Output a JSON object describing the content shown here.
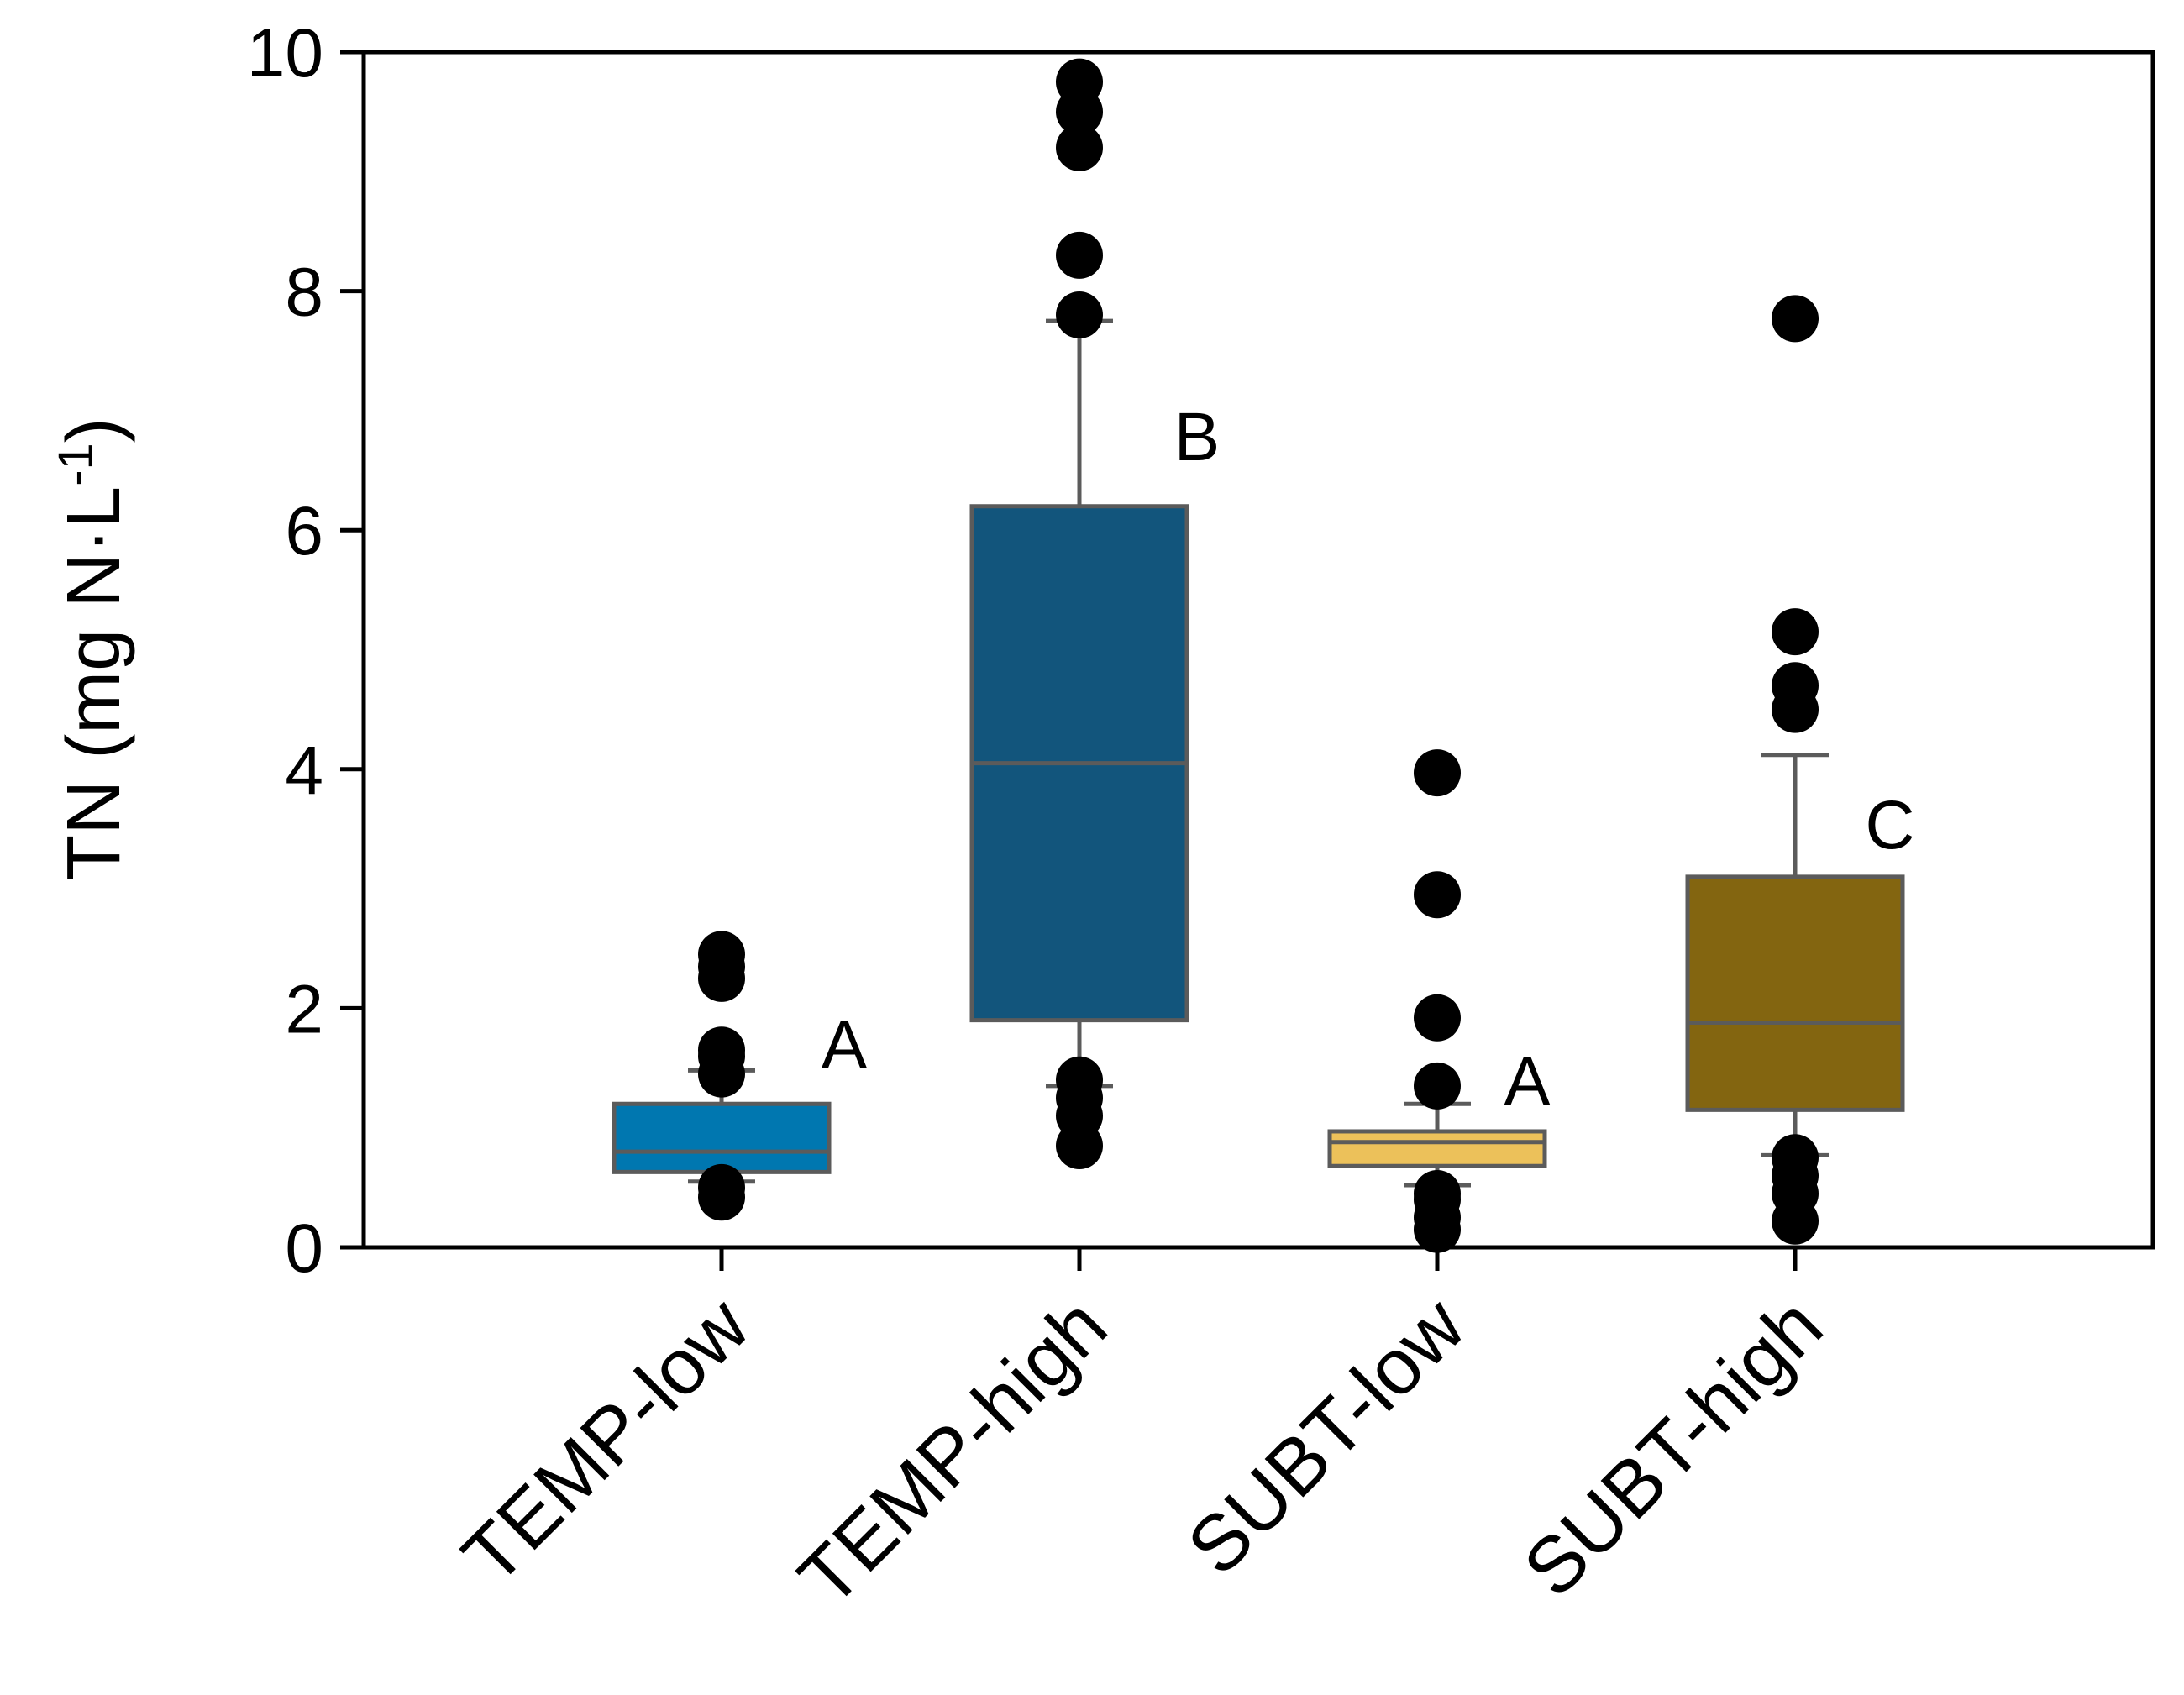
{
  "chart_data": {
    "type": "box",
    "title": "",
    "xlabel": "",
    "ylabel": {
      "main": "TN (mg N·L",
      "superscript": "-1",
      "close": ")"
    },
    "ylim": [
      0,
      10
    ],
    "yticks": [
      "0",
      "2",
      "4",
      "6",
      "8",
      "10"
    ],
    "categories": [
      "TEMP-low",
      "TEMP-high",
      "SUBT-low",
      "SUBT-high"
    ],
    "boxes": [
      {
        "name": "TEMP-low",
        "whisker_low": 0.55,
        "q1": 0.63,
        "median": 0.8,
        "q3": 1.2,
        "whisker_high": 1.48,
        "outliers": [
          0.42,
          0.5,
          1.45,
          1.6,
          1.65,
          2.25,
          2.35,
          2.45
        ],
        "letter": "A",
        "color": "#0077b0"
      },
      {
        "name": "TEMP-high",
        "whisker_low": 1.35,
        "q1": 1.9,
        "median": 4.05,
        "q3": 6.2,
        "whisker_high": 7.75,
        "outliers": [
          0.85,
          1.1,
          1.25,
          1.4,
          7.8,
          8.3,
          9.2,
          9.5,
          9.75
        ],
        "letter": "B",
        "color": "#12557c"
      },
      {
        "name": "SUBT-low",
        "whisker_low": 0.52,
        "q1": 0.68,
        "median": 0.88,
        "q3": 0.97,
        "whisker_high": 1.2,
        "outliers": [
          0.15,
          0.25,
          0.4,
          0.45,
          1.35,
          1.92,
          2.95,
          3.97
        ],
        "letter": "A",
        "color": "#ecc15a"
      },
      {
        "name": "SUBT-high",
        "whisker_low": 0.77,
        "q1": 1.15,
        "median": 1.88,
        "q3": 3.1,
        "whisker_high": 4.12,
        "outliers": [
          0.22,
          0.45,
          0.6,
          0.75,
          4.5,
          4.7,
          5.15,
          7.77
        ],
        "letter": "C",
        "color": "#836510"
      }
    ]
  }
}
